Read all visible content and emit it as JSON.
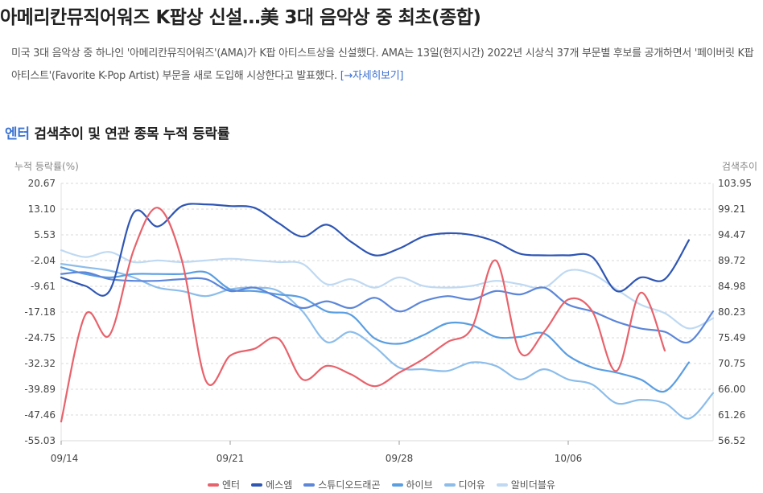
{
  "article": {
    "headline": "아메리칸뮤직어워즈 K팝상 신설…美 3대 음악상 중 최초(종합)",
    "summary": "미국 3대 음악상 중 하나인 '아메리칸뮤직어워즈'(AMA)가 K팝 아티스트상을 신설했다. AMA는 13일(현지시간) 2022년 시상식 37개 부문별 후보를 공개하면서 '페이버릿 K팝 아티스트'(Favorite K-Pop Artist) 부문을 새로 도입해 시상한다고 발표했다.",
    "more_link": "[→자세히보기]"
  },
  "section": {
    "title_accent": "엔터",
    "title_rest": "검색추이 및 연관 종목 누적 등락률"
  },
  "chart_data": {
    "type": "line",
    "left_axis_title": "누적 등락률(%)",
    "right_axis_title": "검색추이",
    "ylim_left": [
      -55.03,
      20.67
    ],
    "ylim_right": [
      56.52,
      103.95
    ],
    "left_ticks": [
      "20.67",
      "13.10",
      "5.53",
      "-2.04",
      "-9.61",
      "-17.18",
      "-24.75",
      "-32.32",
      "-39.89",
      "-47.46",
      "-55.03"
    ],
    "right_ticks": [
      "103.95",
      "99.21",
      "94.47",
      "89.72",
      "84.98",
      "80.23",
      "75.49",
      "70.75",
      "66.00",
      "61.26",
      "56.52"
    ],
    "x_tick_labels": [
      "09/14",
      "09/21",
      "09/28",
      "10/06"
    ],
    "x_tick_index": [
      0,
      7,
      14,
      21
    ],
    "grid": "horizontal dashed",
    "legend_position": "bottom",
    "series": [
      {
        "name": "엔터",
        "color": "#e8626b",
        "values": [
          -49.4,
          -18,
          -24,
          1,
          13.5,
          -2,
          -37.5,
          -30,
          -28,
          -25,
          -37,
          -33,
          -35.5,
          -39,
          -35,
          -31,
          -26,
          -22,
          -2,
          -29,
          -23,
          -13.5,
          -17,
          -34.5,
          -11.5,
          -28.5
        ]
      },
      {
        "name": "에스엠",
        "color": "#2f56b3",
        "values": [
          -7,
          -9.5,
          -11,
          12,
          8,
          14,
          14.5,
          14,
          13.5,
          9,
          5,
          8.5,
          3.5,
          -0.5,
          1.5,
          5,
          6,
          5.5,
          3.5,
          0,
          -0.5,
          -0.5,
          -1,
          -11,
          -7,
          -7.5,
          4
        ]
      },
      {
        "name": "스튜디오드래곤",
        "color": "#5c86d9",
        "values": [
          -6,
          -5.5,
          -7.5,
          -8,
          -8,
          -7.5,
          -7.5,
          -11,
          -10,
          -13,
          -16,
          -14,
          -16,
          -13,
          -17,
          -14,
          -12.5,
          -13.5,
          -11,
          -12,
          -10,
          -15,
          -17,
          -20,
          -22,
          -23,
          -26,
          -17
        ]
      },
      {
        "name": "하이브",
        "color": "#5a9ee2",
        "values": [
          -4,
          -6,
          -7,
          -6,
          -6,
          -6,
          -5.5,
          -10.5,
          -11,
          -12,
          -13,
          -17,
          -18,
          -25,
          -26.5,
          -24,
          -20.5,
          -21,
          -24.5,
          -24.5,
          -23.5,
          -30,
          -33.5,
          -35,
          -37,
          -40.5,
          -32
        ]
      },
      {
        "name": "디어유",
        "color": "#8cbdea",
        "values": [
          -3,
          -4,
          -5,
          -7,
          -10,
          -11,
          -12.5,
          -10.5,
          -10,
          -11,
          -17,
          -26,
          -23,
          -27.5,
          -33.5,
          -34,
          -34.5,
          -32,
          -33,
          -37,
          -34,
          -37,
          -38.5,
          -44,
          -43,
          -44,
          -48.5,
          -41
        ]
      },
      {
        "name": "알비더블유",
        "color": "#bfd9f2",
        "values": [
          1,
          -1,
          0.5,
          -2.5,
          -2,
          -2.5,
          -2,
          -1.5,
          -2,
          -2.5,
          -3,
          -9,
          -7.5,
          -10,
          -7,
          -9.5,
          -10,
          -9.5,
          -8,
          -9,
          -10,
          -5,
          -6,
          -10.5,
          -15,
          -17.5,
          -22,
          -19
        ]
      }
    ]
  }
}
